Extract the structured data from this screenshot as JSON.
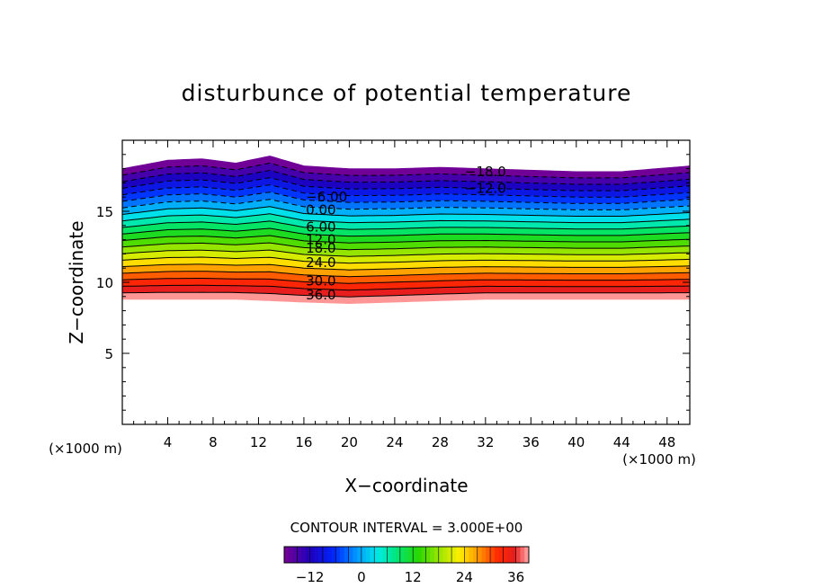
{
  "chart_data": {
    "type": "contour",
    "title": "disturbunce of potential temperature",
    "xlabel": "X−coordinate",
    "ylabel": "Z−coordinate",
    "x_unit": "(×1000 m)",
    "y_unit": "(×1000 m)",
    "xlim": [
      0,
      50
    ],
    "ylim": [
      0,
      20
    ],
    "x_ticks": [
      4,
      8,
      12,
      16,
      20,
      24,
      28,
      32,
      36,
      40,
      44,
      48
    ],
    "y_ticks": [
      5,
      10,
      15
    ],
    "contour_interval_text": "CONTOUR INTERVAL = 3.000E+00",
    "contour_interval": 3.0,
    "levels": [
      -18,
      -15,
      -12,
      -9,
      -6,
      -3,
      0,
      3,
      6,
      9,
      12,
      15,
      18,
      21,
      24,
      27,
      30,
      33,
      36,
      39
    ],
    "negative_contours": "dashed",
    "field": {
      "bottom_z": [
        8.8,
        8.8,
        8.8,
        8.8,
        8.7,
        8.6,
        8.5,
        8.6,
        8.7,
        8.8,
        8.8,
        8.8,
        8.8,
        8.8
      ],
      "top_z": [
        18.0,
        18.6,
        18.7,
        18.4,
        18.9,
        18.2,
        18.0,
        18.0,
        18.1,
        18.0,
        17.9,
        17.8,
        17.8,
        18.2
      ],
      "sample_x": [
        0,
        4,
        7,
        10,
        13,
        16,
        20,
        24,
        28,
        32,
        36,
        40,
        44,
        50
      ]
    },
    "contour_labels": [
      {
        "text": "−18.0",
        "x": 32.0,
        "z": 17.8
      },
      {
        "text": "−12.0",
        "x": 32.0,
        "z": 16.6
      },
      {
        "text": "−6.00",
        "x": 18.0,
        "z": 16.0
      },
      {
        "text": "0.00",
        "x": 17.5,
        "z": 15.1
      },
      {
        "text": "6.00",
        "x": 17.5,
        "z": 13.9
      },
      {
        "text": "12.0",
        "x": 17.5,
        "z": 13.0
      },
      {
        "text": "18.0",
        "x": 17.5,
        "z": 12.4
      },
      {
        "text": "24.0",
        "x": 17.5,
        "z": 11.4
      },
      {
        "text": "30.0",
        "x": 17.5,
        "z": 10.1
      },
      {
        "text": "36.0",
        "x": 17.5,
        "z": 9.1
      }
    ],
    "colorbar": {
      "ticks": [
        -12,
        0,
        12,
        24,
        36
      ],
      "tick_labels": [
        "−12",
        "0",
        "12",
        "24",
        "36"
      ],
      "range": [
        -18,
        39
      ]
    }
  }
}
